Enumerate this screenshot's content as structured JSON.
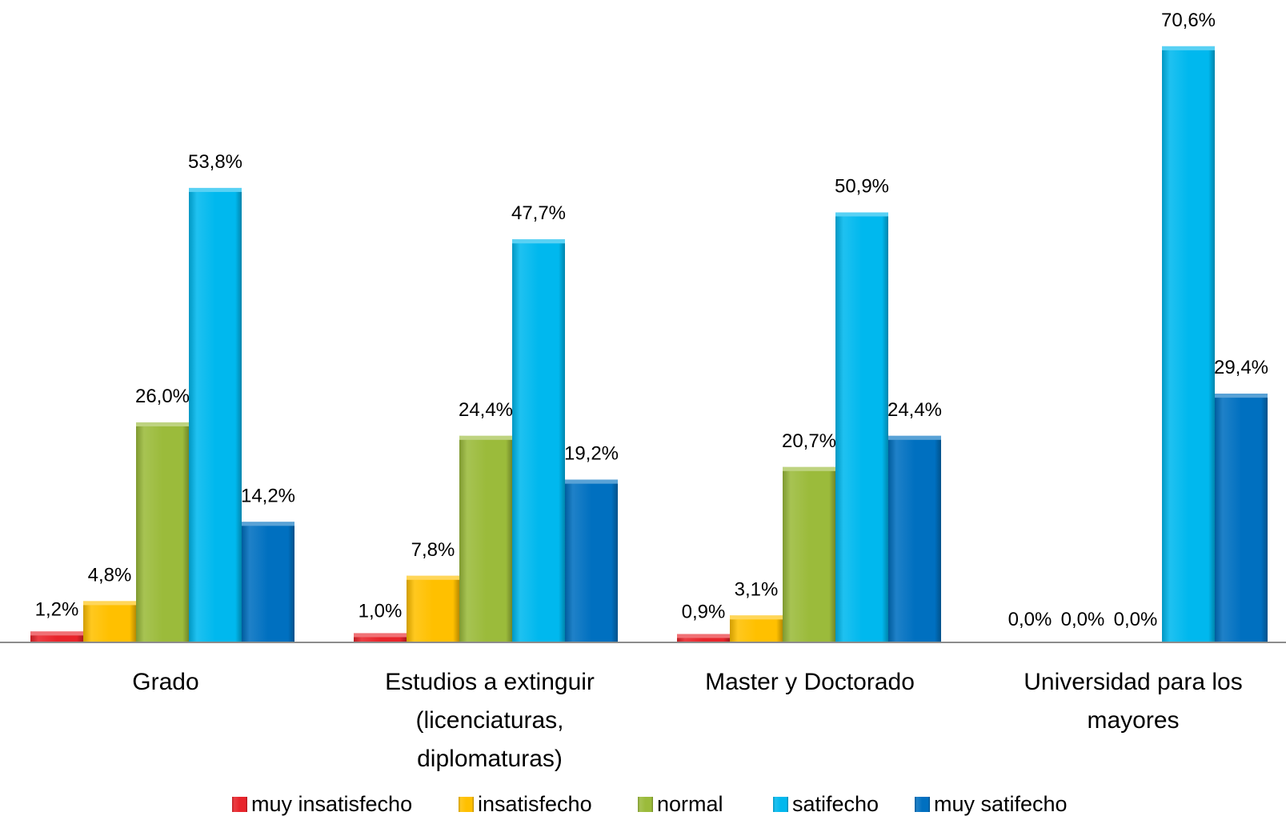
{
  "chart_data": {
    "type": "bar",
    "categories": [
      [
        "Grado"
      ],
      [
        "Estudios a extinguir",
        "(licenciaturas,",
        "diplomaturas)"
      ],
      [
        "Master y Doctorado"
      ],
      [
        "Universidad para los",
        "mayores"
      ]
    ],
    "series": [
      {
        "name": "muy insatisfecho",
        "color": "#E8242B",
        "values": [
          1.2,
          1.0,
          0.9,
          0.0
        ],
        "labels": [
          "1,2%",
          "1,0%",
          "0,9%",
          "0,0%"
        ]
      },
      {
        "name": "insatisfecho",
        "color": "#FFC000",
        "values": [
          4.8,
          7.8,
          3.1,
          0.0
        ],
        "labels": [
          "4,8%",
          "7,8%",
          "3,1%",
          "0,0%"
        ]
      },
      {
        "name": "normal",
        "color": "#9BBB3B",
        "values": [
          26.0,
          24.4,
          20.7,
          0.0
        ],
        "labels": [
          "26,0%",
          "24,4%",
          "20,7%",
          "0,0%"
        ]
      },
      {
        "name": "satifecho",
        "color": "#00B8EE",
        "values": [
          53.8,
          47.7,
          50.9,
          70.6
        ],
        "labels": [
          "53,8%",
          "47,7%",
          "50,9%",
          "70,6%"
        ]
      },
      {
        "name": "muy satifecho",
        "color": "#0070C0",
        "values": [
          14.2,
          19.2,
          24.4,
          29.4
        ],
        "labels": [
          "14,2%",
          "19,2%",
          "24,4%",
          "29,4%"
        ]
      }
    ],
    "ylim": [
      0,
      72
    ],
    "grid": false,
    "legend": "bottom",
    "data_labels": true
  }
}
